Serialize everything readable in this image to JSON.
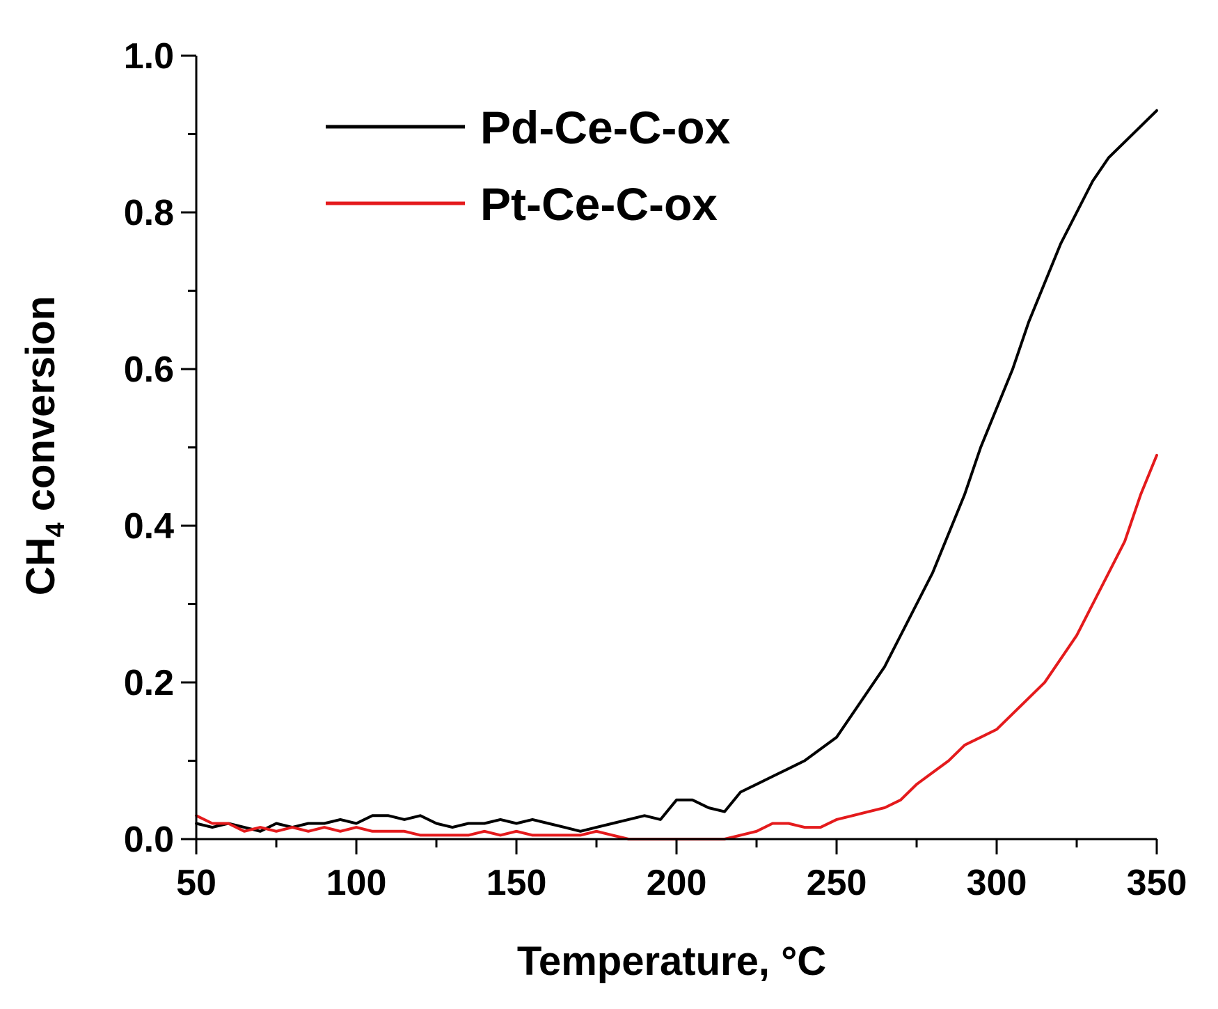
{
  "chart_data": {
    "type": "line",
    "title": "",
    "xlabel": "Temperature, °C",
    "ylabel_main": "CH",
    "ylabel_sub": "4",
    "ylabel_rest": " conversion",
    "xlim": [
      50,
      350
    ],
    "ylim": [
      0,
      1.0
    ],
    "x_ticks": [
      50,
      100,
      150,
      200,
      250,
      300,
      350
    ],
    "x_tick_labels": [
      "50",
      "100",
      "150",
      "200",
      "250",
      "300",
      "350"
    ],
    "y_ticks": [
      0,
      0.2,
      0.4,
      0.6,
      0.8,
      1.0
    ],
    "y_tick_labels": [
      "0.0",
      "0.2",
      "0.4",
      "0.6",
      "0.8",
      "1.0"
    ],
    "grid": false,
    "legend_position": "top-center",
    "series": [
      {
        "name": "Pd-Ce-C-ox",
        "color": "#000000",
        "x": [
          50,
          55,
          60,
          65,
          70,
          75,
          80,
          85,
          90,
          95,
          100,
          105,
          110,
          115,
          120,
          125,
          130,
          135,
          140,
          145,
          150,
          155,
          160,
          165,
          170,
          175,
          180,
          185,
          190,
          195,
          200,
          205,
          210,
          215,
          220,
          225,
          230,
          235,
          240,
          245,
          250,
          255,
          260,
          265,
          270,
          275,
          280,
          285,
          290,
          295,
          300,
          305,
          310,
          315,
          320,
          325,
          330,
          335,
          340,
          345,
          350
        ],
        "y": [
          0.02,
          0.015,
          0.02,
          0.015,
          0.01,
          0.02,
          0.015,
          0.02,
          0.02,
          0.025,
          0.02,
          0.03,
          0.03,
          0.025,
          0.03,
          0.02,
          0.015,
          0.02,
          0.02,
          0.025,
          0.02,
          0.025,
          0.02,
          0.015,
          0.01,
          0.015,
          0.02,
          0.025,
          0.03,
          0.025,
          0.05,
          0.05,
          0.04,
          0.035,
          0.06,
          0.07,
          0.08,
          0.09,
          0.1,
          0.115,
          0.13,
          0.16,
          0.19,
          0.22,
          0.26,
          0.3,
          0.34,
          0.39,
          0.44,
          0.5,
          0.55,
          0.6,
          0.66,
          0.71,
          0.76,
          0.8,
          0.84,
          0.87,
          0.89,
          0.91,
          0.93
        ]
      },
      {
        "name": "Pt-Ce-C-ox",
        "color": "#e41a1c",
        "x": [
          50,
          55,
          60,
          65,
          70,
          75,
          80,
          85,
          90,
          95,
          100,
          105,
          110,
          115,
          120,
          125,
          130,
          135,
          140,
          145,
          150,
          155,
          160,
          165,
          170,
          175,
          180,
          185,
          190,
          195,
          200,
          205,
          210,
          215,
          220,
          225,
          230,
          235,
          240,
          245,
          250,
          255,
          260,
          265,
          270,
          275,
          280,
          285,
          290,
          295,
          300,
          305,
          310,
          315,
          320,
          325,
          330,
          335,
          340,
          345,
          350
        ],
        "y": [
          0.03,
          0.02,
          0.02,
          0.01,
          0.015,
          0.01,
          0.015,
          0.01,
          0.015,
          0.01,
          0.015,
          0.01,
          0.01,
          0.01,
          0.005,
          0.005,
          0.005,
          0.005,
          0.01,
          0.005,
          0.01,
          0.005,
          0.005,
          0.005,
          0.005,
          0.01,
          0.005,
          0.0,
          0.0,
          0.0,
          0.0,
          0.0,
          0.0,
          0.0,
          0.005,
          0.01,
          0.02,
          0.02,
          0.015,
          0.015,
          0.025,
          0.03,
          0.035,
          0.04,
          0.05,
          0.07,
          0.085,
          0.1,
          0.12,
          0.13,
          0.14,
          0.16,
          0.18,
          0.2,
          0.23,
          0.26,
          0.3,
          0.34,
          0.38,
          0.44,
          0.49
        ]
      }
    ]
  }
}
